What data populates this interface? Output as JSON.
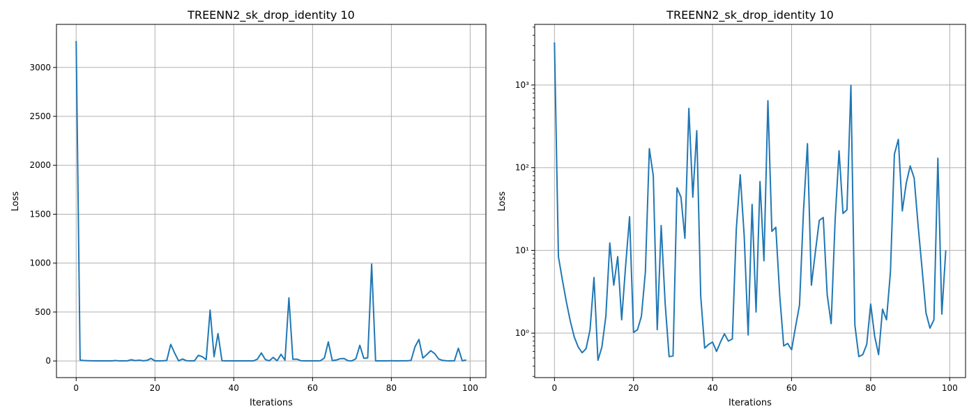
{
  "figure": {
    "background": "#ffffff",
    "line_color": "#1f77b4",
    "grid_color": "#b0b0b0"
  },
  "chart_data": [
    {
      "type": "line",
      "title": "TREENN2_sk_drop_identity 10",
      "xlabel": "Iterations",
      "ylabel": "Loss",
      "yscale": "linear",
      "xlim": [
        -5,
        104
      ],
      "ylim": [
        -170,
        3440
      ],
      "xticks": [
        0,
        20,
        40,
        60,
        80,
        100
      ],
      "xtick_labels": [
        "0",
        "20",
        "40",
        "60",
        "80",
        "100"
      ],
      "yticks": [
        0,
        500,
        1000,
        1500,
        2000,
        2500,
        3000
      ],
      "ytick_labels": [
        "0",
        "500",
        "1000",
        "1500",
        "2000",
        "2500",
        "3000"
      ],
      "grid": true,
      "series_ref": "loss"
    },
    {
      "type": "line",
      "title": "TREENN2_sk_drop_identity 10",
      "xlabel": "Iterations",
      "ylabel": "Loss",
      "yscale": "log",
      "xlim": [
        -5,
        104
      ],
      "ylim": [
        0.29,
        5400
      ],
      "xticks": [
        0,
        20,
        40,
        60,
        80,
        100
      ],
      "xtick_labels": [
        "0",
        "20",
        "40",
        "60",
        "80",
        "100"
      ],
      "yticks": [
        1,
        10,
        100,
        1000
      ],
      "ytick_labels": [
        "10⁰",
        "10¹",
        "10²",
        "10³"
      ],
      "grid": true,
      "series_ref": "loss"
    }
  ],
  "loss": {
    "x": [
      0,
      1,
      2,
      3,
      4,
      5,
      6,
      7,
      8,
      9,
      10,
      11,
      12,
      13,
      14,
      15,
      16,
      17,
      18,
      19,
      20,
      21,
      22,
      23,
      24,
      25,
      26,
      27,
      28,
      29,
      30,
      31,
      32,
      33,
      34,
      35,
      36,
      37,
      38,
      39,
      40,
      41,
      42,
      43,
      44,
      45,
      46,
      47,
      48,
      49,
      50,
      51,
      52,
      53,
      54,
      55,
      56,
      57,
      58,
      59,
      60,
      61,
      62,
      63,
      64,
      65,
      66,
      67,
      68,
      69,
      70,
      71,
      72,
      73,
      74,
      75,
      76,
      77,
      78,
      79,
      80,
      81,
      82,
      83,
      84,
      85,
      86,
      87,
      88,
      89,
      90,
      91,
      92,
      93,
      94,
      95,
      96,
      97,
      98,
      99
    ],
    "y": [
      3270,
      8.4,
      4.4,
      2.4,
      1.4,
      0.9,
      0.68,
      0.58,
      0.65,
      1.1,
      4.7,
      0.47,
      0.68,
      1.6,
      12.3,
      3.8,
      8.4,
      1.45,
      6.5,
      25.5,
      1.02,
      1.1,
      1.6,
      5.5,
      170,
      80,
      1.1,
      20,
      2.3,
      0.52,
      0.53,
      57,
      44,
      14,
      520,
      44,
      280,
      2.8,
      0.66,
      0.73,
      0.78,
      0.6,
      0.78,
      0.98,
      0.8,
      0.85,
      18,
      82,
      15,
      0.95,
      36,
      1.8,
      68,
      7.5,
      645,
      17,
      19,
      2.8,
      0.7,
      0.75,
      0.63,
      1.2,
      2.2,
      30,
      195,
      3.8,
      9.5,
      23,
      25,
      2.9,
      1.3,
      23,
      160,
      28,
      31,
      990,
      1.25,
      0.52,
      0.55,
      0.73,
      2.25,
      0.92,
      0.55,
      1.95,
      1.45,
      5.5,
      145,
      220,
      30,
      65,
      105,
      75,
      20,
      6,
      1.75,
      1.15,
      1.45,
      130,
      1.7,
      10
    ]
  }
}
